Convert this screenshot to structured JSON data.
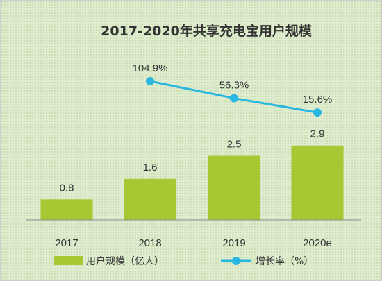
{
  "chart_data": {
    "type": "bar",
    "title": "2017-2020年共享充电宝用户规模",
    "categories": [
      "2017",
      "2018",
      "2019",
      "2020e"
    ],
    "series": [
      {
        "name": "用户规模（亿人）",
        "type": "bar",
        "values": [
          0.8,
          1.6,
          2.5,
          2.9
        ],
        "labels": [
          "0.8",
          "1.6",
          "2.5",
          "2.9"
        ],
        "color": "#a6c832"
      },
      {
        "name": "增长率（%）",
        "type": "line",
        "values": [
          null,
          104.9,
          56.3,
          15.6
        ],
        "labels": [
          "",
          "104.9%",
          "56.3%",
          "15.6%"
        ],
        "color": "#29b6e0"
      }
    ],
    "grid": false,
    "legend": "bottom"
  }
}
